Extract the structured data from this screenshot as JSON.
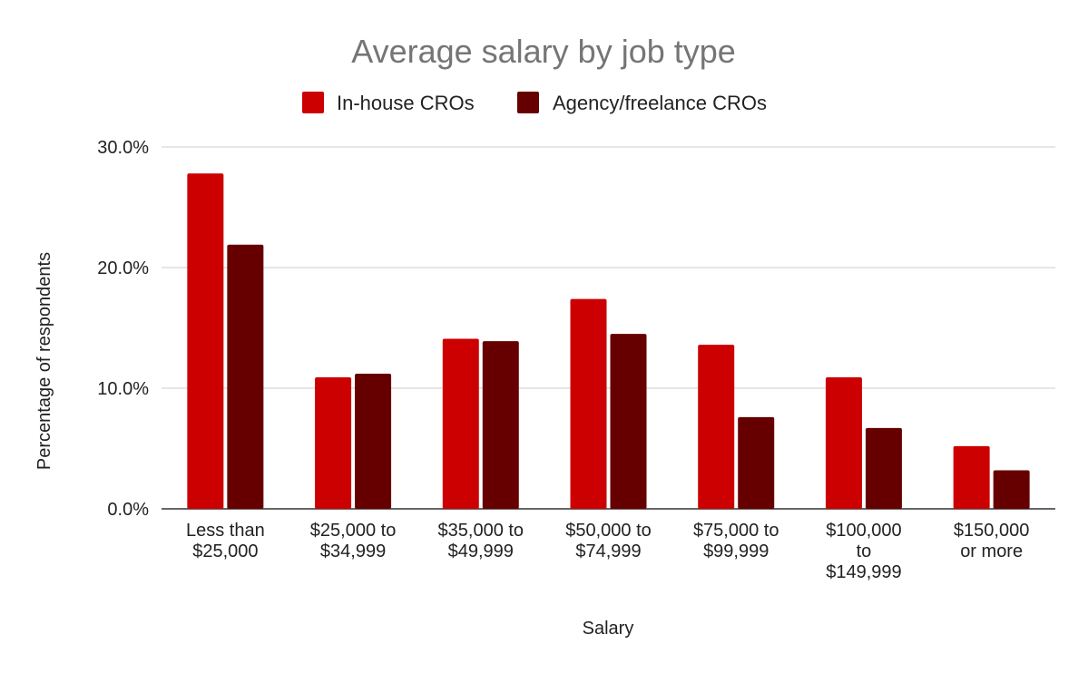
{
  "chart_data": {
    "type": "bar",
    "title": "Average salary by job type",
    "xlabel": "Salary",
    "ylabel": "Percentage of respondents",
    "ylim": [
      0,
      30
    ],
    "yticks": [
      "0.0%",
      "10.0%",
      "20.0%",
      "30.0%"
    ],
    "grid": true,
    "legend_position": "top",
    "categories": [
      [
        "Less than",
        "$25,000"
      ],
      [
        "$25,000 to",
        "$34,999"
      ],
      [
        "$35,000 to",
        "$49,999"
      ],
      [
        "$50,000 to",
        "$74,999"
      ],
      [
        "$75,000 to",
        "$99,999"
      ],
      [
        "$100,000",
        "to",
        "$149,999"
      ],
      [
        "$150,000",
        "or more"
      ]
    ],
    "series": [
      {
        "name": "In-house CROs",
        "color": "#cc0000",
        "values": [
          27.8,
          10.9,
          14.1,
          17.4,
          13.6,
          10.9,
          5.2
        ]
      },
      {
        "name": "Agency/freelance CROs",
        "color": "#660000",
        "values": [
          21.9,
          11.2,
          13.9,
          14.5,
          7.6,
          6.7,
          3.2
        ]
      }
    ]
  }
}
